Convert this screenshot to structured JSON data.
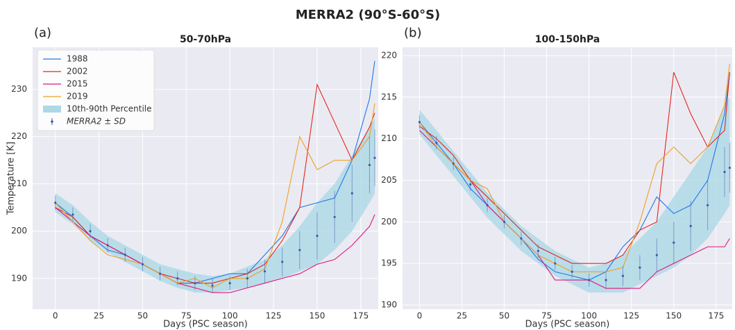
{
  "title": "MERRA2 (90°S-60°S)",
  "chart_data": [
    {
      "type": "line",
      "panel": "(a)",
      "title": "50-70hPa",
      "xlabel": "Days (PSC season)",
      "ylabel": "Temperature [K]",
      "x": [
        0,
        10,
        20,
        30,
        40,
        50,
        60,
        70,
        80,
        90,
        100,
        110,
        120,
        130,
        140,
        150,
        160,
        170,
        180,
        183
      ],
      "series": [
        {
          "name": "1988",
          "color": "#1f77e6",
          "values": [
            206,
            203,
            199,
            196,
            195,
            193,
            191,
            189,
            189,
            190,
            191,
            191,
            195,
            199,
            205,
            206,
            207,
            215,
            228,
            236
          ]
        },
        {
          "name": "2002",
          "color": "#e3261d",
          "values": [
            205,
            203,
            199,
            197,
            195,
            193,
            191,
            190,
            189,
            189,
            190,
            191,
            193,
            198,
            205,
            231,
            223,
            215,
            222,
            225
          ]
        },
        {
          "name": "2015",
          "color": "#e0157a",
          "values": [
            205,
            202,
            199,
            197,
            195,
            193,
            191,
            189,
            188,
            187,
            187,
            188,
            189,
            190,
            191,
            193,
            194,
            197,
            201,
            203.5
          ]
        },
        {
          "name": "2019",
          "color": "#f0a020",
          "values": [
            206,
            202,
            198,
            195,
            194,
            193,
            191,
            189,
            190,
            188,
            190,
            190,
            192,
            202,
            220,
            213,
            215,
            215,
            220,
            227
          ]
        }
      ],
      "band": {
        "name": "10th-90th Percentile",
        "color": "#add8e6",
        "lower": [
          204,
          201.5,
          198,
          195.5,
          193.5,
          191.5,
          189.5,
          188,
          187,
          187,
          187.5,
          188,
          189,
          190,
          191.5,
          193,
          196,
          200,
          206,
          208
        ],
        "upper": [
          208,
          205.5,
          202,
          199,
          197,
          195,
          193,
          192,
          191,
          190.5,
          191,
          192.5,
          194,
          197,
          201,
          206,
          210,
          216,
          222,
          224
        ]
      },
      "mean": {
        "name": "MERRA2 ± SD",
        "color": "#3a5aa8",
        "values": [
          206,
          203.5,
          200,
          197,
          195,
          193,
          191,
          190,
          189,
          188.5,
          189,
          190,
          191.5,
          193.5,
          196,
          199,
          203,
          208,
          214,
          215.5
        ],
        "sd": [
          1.5,
          1.5,
          1.5,
          1.5,
          1.5,
          1.5,
          1.5,
          1.5,
          1.5,
          1.5,
          1.5,
          2,
          2.5,
          3,
          4,
          5,
          5.5,
          6,
          6,
          6
        ]
      },
      "xlim": [
        -13,
        185
      ],
      "ylim": [
        183.5,
        238.9
      ],
      "xticks": [
        0,
        25,
        50,
        75,
        100,
        125,
        150,
        175
      ],
      "yticks": [
        190,
        200,
        210,
        220,
        230
      ],
      "grid": true,
      "legend": "upper left"
    },
    {
      "type": "line",
      "panel": "(b)",
      "title": "100-150hPa",
      "xlabel": "Days (PSC season)",
      "x": [
        0,
        10,
        20,
        30,
        40,
        50,
        60,
        70,
        80,
        90,
        100,
        110,
        120,
        130,
        140,
        150,
        160,
        170,
        180,
        183
      ],
      "series": [
        {
          "color": "#1f77e6",
          "values": [
            212,
            209.5,
            207,
            204,
            202,
            200,
            198,
            195.5,
            194,
            193.5,
            193,
            194,
            197,
            199,
            203,
            201,
            202,
            205,
            213,
            218
          ]
        },
        {
          "color": "#e3261d",
          "values": [
            211.5,
            210,
            208,
            205,
            203,
            201,
            199,
            197,
            196,
            195,
            195,
            195,
            196,
            199,
            200,
            218,
            213,
            209,
            211,
            218
          ]
        },
        {
          "color": "#e0157a",
          "values": [
            211,
            209,
            207,
            205,
            202,
            200,
            198,
            196,
            193,
            193,
            193,
            192,
            192,
            192,
            194,
            195,
            196,
            197,
            197,
            198
          ]
        },
        {
          "color": "#f0a020",
          "values": [
            212,
            209,
            207,
            205,
            204,
            200,
            198,
            196,
            195,
            194,
            194,
            194,
            194.5,
            200,
            207,
            209,
            207,
            209,
            214,
            219
          ]
        }
      ],
      "band": {
        "color": "#add8e6",
        "lower": [
          210.5,
          208,
          205.5,
          203,
          200.5,
          198.5,
          196.5,
          195,
          193.5,
          192.5,
          191.5,
          191.5,
          191.5,
          192.5,
          193.5,
          194.5,
          196,
          198,
          201,
          202
        ],
        "upper": [
          213.5,
          211,
          208.5,
          206,
          203.5,
          201.5,
          199.5,
          198,
          196.5,
          195.5,
          194.5,
          195,
          196,
          198,
          200,
          203,
          206,
          209,
          214,
          215
        ]
      },
      "mean": {
        "color": "#3a5aa8",
        "values": [
          212,
          209.5,
          207,
          204.5,
          202,
          200,
          198,
          196.5,
          195,
          194,
          193,
          193,
          193.5,
          194.5,
          196,
          197.5,
          199.5,
          202,
          206,
          206.5
        ],
        "sd": [
          0.8,
          0.8,
          0.8,
          0.8,
          0.8,
          0.8,
          0.8,
          0.8,
          0.8,
          0.8,
          0.8,
          1,
          1.2,
          1.5,
          2,
          2.5,
          3,
          3,
          3,
          3
        ]
      },
      "xlim": [
        -10,
        184.5
      ],
      "ylim": [
        189.5,
        221
      ],
      "xticks": [
        0,
        25,
        50,
        75,
        100,
        125,
        150,
        175
      ],
      "yticks": [
        190,
        195,
        200,
        205,
        210,
        215,
        220
      ],
      "grid": true
    }
  ]
}
